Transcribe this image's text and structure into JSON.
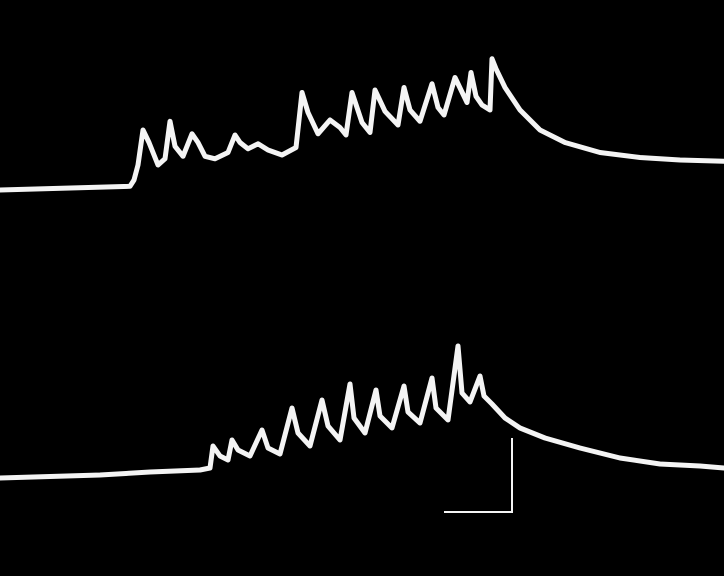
{
  "chart_data": [
    {
      "type": "line",
      "title": "",
      "xlabel": "",
      "ylabel": "",
      "grid": false,
      "legend": "none",
      "colors": {
        "background": "#000000",
        "trace": "#f4f4f4"
      },
      "x": [
        0,
        130,
        134,
        138,
        143,
        149,
        158,
        165,
        170,
        175,
        183,
        192,
        198,
        205,
        215,
        228,
        235,
        240,
        248,
        258,
        268,
        282,
        296,
        302,
        308,
        318,
        330,
        340,
        346,
        352,
        362,
        370,
        375,
        385,
        398,
        404,
        410,
        420,
        432,
        438,
        444,
        455,
        467,
        471,
        476,
        482,
        490,
        492,
        496,
        505,
        520,
        540,
        565,
        600,
        640,
        680,
        724
      ],
      "y": [
        0,
        3,
        8,
        20,
        48,
        38,
        20,
        25,
        55,
        35,
        27,
        45,
        38,
        27,
        25,
        30,
        44,
        38,
        33,
        37,
        32,
        28,
        34,
        78,
        62,
        45,
        56,
        50,
        44,
        78,
        54,
        46,
        80,
        63,
        52,
        82,
        64,
        55,
        85,
        66,
        60,
        90,
        70,
        94,
        75,
        68,
        64,
        105,
        97,
        82,
        64,
        48,
        38,
        30,
        26,
        24,
        23
      ]
    },
    {
      "type": "line",
      "title": "",
      "xlabel": "",
      "ylabel": "",
      "grid": false,
      "legend": "none",
      "colors": {
        "background": "#000000",
        "trace": "#f4f4f4"
      },
      "x": [
        0,
        100,
        150,
        200,
        210,
        213,
        220,
        228,
        232,
        238,
        250,
        262,
        268,
        280,
        292,
        298,
        310,
        322,
        328,
        340,
        350,
        354,
        365,
        376,
        380,
        392,
        404,
        408,
        420,
        432,
        436,
        448,
        458,
        462,
        470,
        480,
        484,
        492,
        505,
        520,
        545,
        580,
        620,
        660,
        700,
        724
      ],
      "y": [
        0,
        3,
        6,
        8,
        10,
        32,
        22,
        18,
        38,
        28,
        22,
        48,
        30,
        24,
        70,
        45,
        32,
        78,
        52,
        38,
        94,
        60,
        45,
        88,
        62,
        50,
        92,
        66,
        55,
        100,
        70,
        58,
        132,
        85,
        76,
        102,
        82,
        74,
        60,
        50,
        40,
        30,
        20,
        14,
        12,
        10
      ]
    }
  ],
  "scale_bar": {
    "vertical_units": 1,
    "horizontal_units": 1
  }
}
